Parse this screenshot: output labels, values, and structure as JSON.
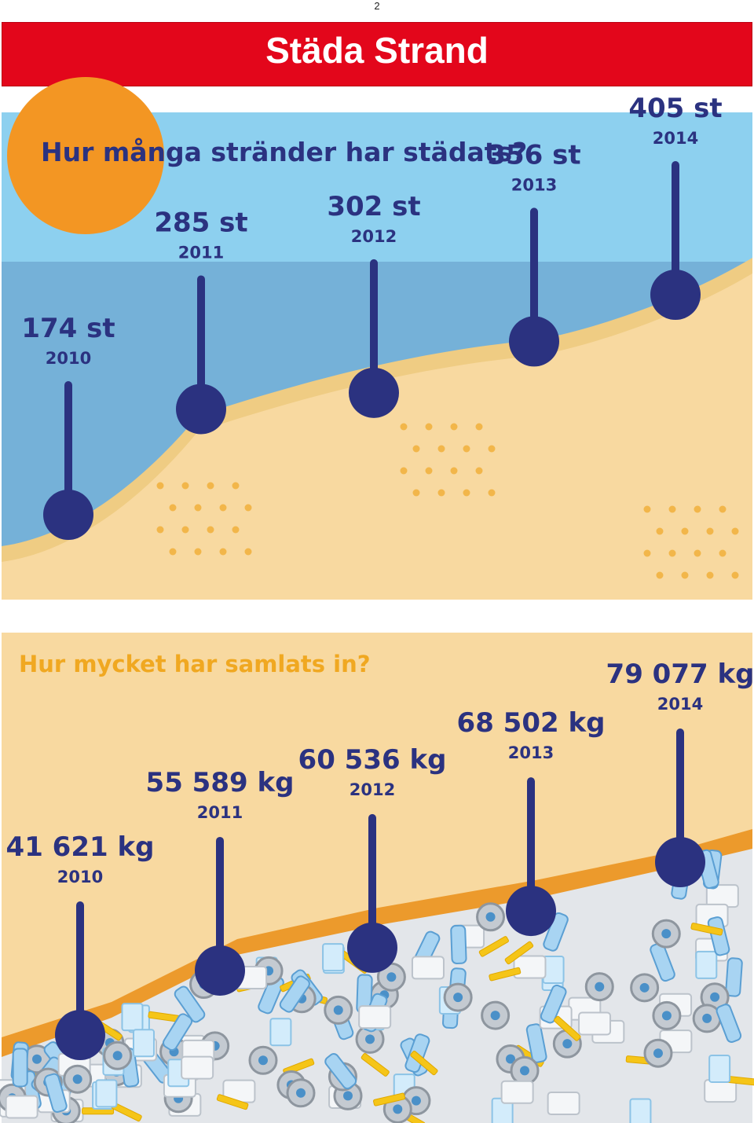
{
  "page_number": "2",
  "banner_title": "Städa Strand",
  "colors": {
    "banner": "#e3061b",
    "navy": "#2b3280",
    "sky": "#8dd0ef",
    "sea": "#75b1d8",
    "sand": "#f8d9a0",
    "sun": "#f39623",
    "dots": "#f2b64a",
    "title_yellow": "#f0a821"
  },
  "chart_data": [
    {
      "type": "bar",
      "title": "Hur många stränder har städats?",
      "categories": [
        "2010",
        "2011",
        "2012",
        "2013",
        "2014"
      ],
      "values": [
        174,
        285,
        302,
        356,
        405
      ],
      "value_labels": [
        "174 st",
        "285 st",
        "302 st",
        "356 st",
        "405 st"
      ],
      "year_labels": [
        "2010",
        "2011",
        "2012",
        "2013",
        "2014"
      ]
    },
    {
      "type": "bar",
      "title": "Hur mycket har samlats in?",
      "categories": [
        "2010",
        "2011",
        "2012",
        "2013",
        "2014"
      ],
      "values": [
        41621,
        55589,
        60536,
        68502,
        79077
      ],
      "value_labels": [
        "41 621 kg",
        "55 589 kg",
        "60 536 kg",
        "68 502 kg",
        "79 077 kg"
      ],
      "year_labels": [
        "2010",
        "2011",
        "2012",
        "2013",
        "2014"
      ]
    }
  ]
}
